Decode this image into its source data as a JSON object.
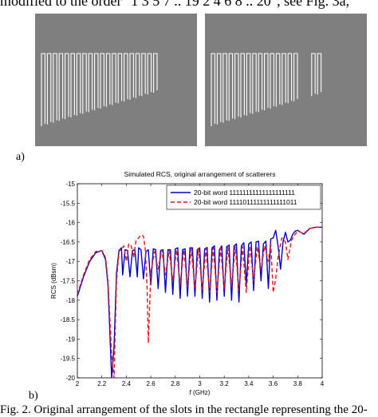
{
  "text": {
    "top_line": "modified to the order \"1 3 5 7 .. 19 2 4 6 8 .. 20\", see Fig. 3a,",
    "label_a": "a)",
    "label_b": "b)",
    "caption": "Fig. 2.   Original arrangement of the slots in the rectangle representing the 20-"
  },
  "slots_left": [
    1,
    1,
    1,
    1,
    1,
    1,
    1,
    1,
    1,
    1,
    1,
    1,
    1,
    1,
    1,
    1,
    1,
    1,
    1,
    1
  ],
  "slots_right": [
    1,
    1,
    1,
    1,
    1,
    1,
    1,
    1,
    1,
    1,
    1,
    1,
    1,
    1,
    1,
    0,
    0,
    1,
    1,
    0
  ],
  "colors": {
    "panel": "#7f7f7f",
    "slot": "#ffffff",
    "series1": "#0000cc",
    "series2": "#ee1111"
  },
  "chart_data": {
    "type": "line",
    "title": "Simulated RCS, original arrangement of scatterers",
    "xlabel": "f (GHz)",
    "ylabel": "RCS (dBsm)",
    "xlim": [
      2,
      4
    ],
    "ylim": [
      -20,
      -15
    ],
    "xticks": [
      "2",
      "2.2",
      "2.4",
      "2.6",
      "2.8",
      "3",
      "3.2",
      "3.4",
      "3.6",
      "3.8",
      "4"
    ],
    "yticks": [
      "-15",
      "-15.5",
      "-16",
      "-16.5",
      "-17",
      "-17.5",
      "-18",
      "-18.5",
      "-19",
      "-19.5",
      "-20"
    ],
    "legend_position": "top-right",
    "series": [
      {
        "name": "20-bit word 11111111111111111111",
        "style": "solid",
        "x": [
          2.0,
          2.05,
          2.1,
          2.15,
          2.2,
          2.23,
          2.25,
          2.28,
          2.3,
          2.32,
          2.34,
          2.36,
          2.37,
          2.39,
          2.41,
          2.43,
          2.45,
          2.47,
          2.49,
          2.5,
          2.52,
          2.54,
          2.56,
          2.58,
          2.6,
          2.62,
          2.64,
          2.66,
          2.68,
          2.7,
          2.72,
          2.74,
          2.76,
          2.78,
          2.8,
          2.82,
          2.84,
          2.86,
          2.88,
          2.9,
          2.92,
          2.94,
          2.96,
          2.98,
          3.0,
          3.02,
          3.04,
          3.06,
          3.08,
          3.1,
          3.12,
          3.14,
          3.16,
          3.18,
          3.2,
          3.22,
          3.24,
          3.26,
          3.28,
          3.3,
          3.32,
          3.34,
          3.36,
          3.38,
          3.4,
          3.42,
          3.44,
          3.46,
          3.48,
          3.5,
          3.52,
          3.54,
          3.56,
          3.58,
          3.6,
          3.62,
          3.64,
          3.66,
          3.68,
          3.7,
          3.72,
          3.74,
          3.76,
          3.78,
          3.8,
          3.85,
          3.9,
          3.95,
          4.0
        ],
        "y": [
          -17.9,
          -17.4,
          -17.0,
          -16.78,
          -16.72,
          -16.95,
          -17.6,
          -20.0,
          -19.2,
          -17.3,
          -16.72,
          -16.65,
          -17.35,
          -16.7,
          -16.72,
          -17.4,
          -16.72,
          -16.7,
          -17.4,
          -16.65,
          -16.7,
          -17.45,
          -16.75,
          -16.7,
          -17.6,
          -16.68,
          -16.7,
          -17.7,
          -16.72,
          -16.7,
          -17.8,
          -16.7,
          -16.7,
          -17.85,
          -16.68,
          -16.65,
          -17.95,
          -16.7,
          -16.68,
          -17.9,
          -16.65,
          -16.65,
          -17.9,
          -16.7,
          -16.65,
          -17.95,
          -16.68,
          -16.64,
          -18.05,
          -16.65,
          -16.6,
          -18.0,
          -16.7,
          -16.6,
          -17.9,
          -16.62,
          -16.58,
          -18.0,
          -16.6,
          -16.55,
          -18.05,
          -16.6,
          -16.52,
          -17.6,
          -16.55,
          -16.5,
          -17.75,
          -16.5,
          -16.48,
          -17.5,
          -16.55,
          -16.48,
          -17.7,
          -16.42,
          -16.4,
          -16.2,
          -16.6,
          -17.2,
          -16.5,
          -16.25,
          -16.5,
          -16.45,
          -16.3,
          -16.22,
          -16.2,
          -16.3,
          -16.15,
          -16.12,
          -16.12
        ]
      },
      {
        "name": "20-bit word 11110111111111111011",
        "style": "dashed",
        "x": [
          2.0,
          2.05,
          2.1,
          2.15,
          2.2,
          2.23,
          2.25,
          2.28,
          2.3,
          2.32,
          2.34,
          2.36,
          2.38,
          2.4,
          2.42,
          2.44,
          2.46,
          2.48,
          2.5,
          2.52,
          2.54,
          2.555,
          2.57,
          2.58,
          2.6,
          2.63,
          2.66,
          2.69,
          2.72,
          2.75,
          2.78,
          2.81,
          2.84,
          2.87,
          2.9,
          2.93,
          2.96,
          2.99,
          3.02,
          3.05,
          3.08,
          3.11,
          3.14,
          3.17,
          3.2,
          3.23,
          3.26,
          3.29,
          3.32,
          3.35,
          3.38,
          3.41,
          3.44,
          3.47,
          3.5,
          3.53,
          3.56,
          3.58,
          3.6,
          3.62,
          3.64,
          3.67,
          3.7,
          3.72,
          3.75,
          3.78,
          3.8,
          3.85,
          3.9,
          3.95,
          4.0
        ],
        "y": [
          -17.85,
          -17.35,
          -16.95,
          -16.75,
          -16.72,
          -16.9,
          -17.5,
          -19.4,
          -20.0,
          -17.5,
          -16.75,
          -16.68,
          -16.6,
          -17.0,
          -16.55,
          -16.6,
          -16.9,
          -16.45,
          -16.4,
          -16.32,
          -16.35,
          -16.7,
          -17.7,
          -19.1,
          -17.3,
          -16.75,
          -17.2,
          -16.7,
          -17.35,
          -16.72,
          -17.5,
          -16.7,
          -17.6,
          -16.7,
          -17.65,
          -16.68,
          -17.7,
          -16.66,
          -17.75,
          -16.66,
          -17.8,
          -16.65,
          -17.8,
          -16.66,
          -17.7,
          -16.64,
          -17.65,
          -16.62,
          -17.75,
          -16.62,
          -17.8,
          -16.6,
          -17.5,
          -16.62,
          -17.2,
          -16.6,
          -17.0,
          -16.55,
          -17.8,
          -17.45,
          -16.9,
          -16.4,
          -16.5,
          -16.95,
          -16.45,
          -16.3,
          -16.22,
          -16.28,
          -16.15,
          -16.12,
          -16.12
        ]
      }
    ]
  }
}
